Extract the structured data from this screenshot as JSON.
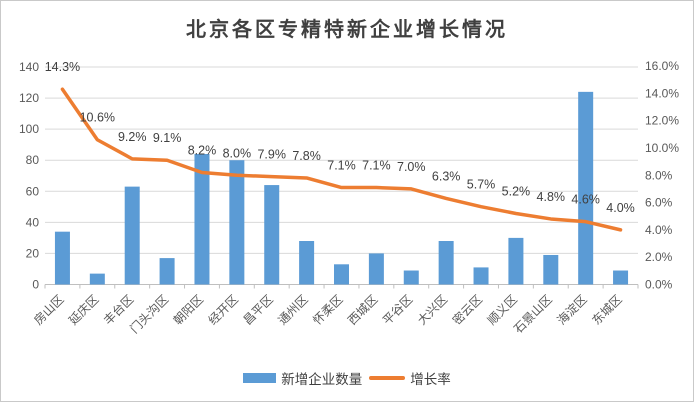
{
  "frame": {
    "background": "#FFFFFF",
    "border_color": "#C9C9C9"
  },
  "chart_data": {
    "type": "combo-bar-line",
    "title": "北京各区专精特新企业增长情况",
    "categories": [
      "房山区",
      "延庆区",
      "丰台区",
      "门头沟区",
      "朝阳区",
      "经开区",
      "昌平区",
      "通州区",
      "怀柔区",
      "西城区",
      "平谷区",
      "大兴区",
      "密云区",
      "顺义区",
      "石景山区",
      "海淀区",
      "东城区"
    ],
    "series": [
      {
        "name": "新增企业数量",
        "type": "bar",
        "axis": "left",
        "color": "#5B9BD5",
        "values": [
          34,
          7,
          63,
          17,
          84,
          80,
          64,
          28,
          13,
          20,
          9,
          28,
          11,
          30,
          19,
          124,
          9
        ]
      },
      {
        "name": "增长率",
        "type": "line",
        "axis": "right",
        "color": "#ED7D31",
        "values": [
          14.3,
          10.6,
          9.2,
          9.1,
          8.2,
          8.0,
          7.9,
          7.8,
          7.1,
          7.1,
          7.0,
          6.3,
          5.7,
          5.2,
          4.8,
          4.6,
          4.0
        ],
        "point_labels": [
          "14.3%",
          "10.6%",
          "9.2%",
          "9.1%",
          "8.2%",
          "8.0%",
          "7.9%",
          "7.8%",
          "7.1%",
          "7.1%",
          "7.0%",
          "6.3%",
          "5.7%",
          "5.2%",
          "4.8%",
          "4.6%",
          "4.0%"
        ]
      }
    ],
    "left_axis": {
      "min": 0,
      "max": 140,
      "step": 20,
      "tick_labels": [
        "0",
        "20",
        "40",
        "60",
        "80",
        "100",
        "120",
        "140"
      ]
    },
    "right_axis": {
      "min": 0,
      "max": 16,
      "step": 2,
      "format": "percent",
      "tick_labels": [
        "0.0%",
        "2.0%",
        "4.0%",
        "6.0%",
        "8.0%",
        "10.0%",
        "12.0%",
        "14.0%",
        "16.0%"
      ]
    },
    "grid": true,
    "legend_position": "bottom",
    "x_label_rotation": -45,
    "styles": {
      "grid_color": "#D9D9D9",
      "axis_line_color": "#BFBFBF",
      "axis_text_color": "#595959",
      "data_label_color": "#404040",
      "title_color": "#404040",
      "legend_text_color": "#404040"
    }
  }
}
